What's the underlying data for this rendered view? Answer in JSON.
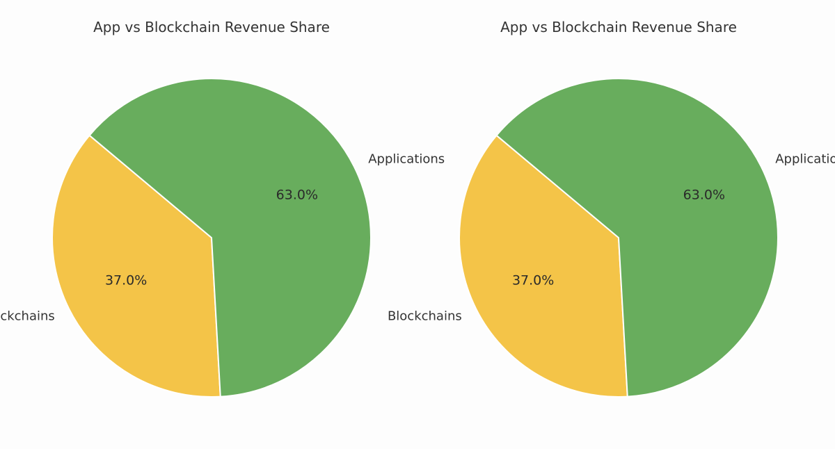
{
  "chart_data": [
    {
      "type": "pie",
      "title": "App vs Blockchain Revenue Share",
      "categories": [
        "Blockchains",
        "Applications"
      ],
      "values": [
        37.0,
        63.0
      ],
      "value_labels": [
        "37.0%",
        "63.0%"
      ],
      "colors": [
        "#F4C448",
        "#68AD5D"
      ],
      "start_angle_deg": 140,
      "direction": "counterclockwise",
      "legend": "none"
    },
    {
      "type": "pie",
      "title": "App vs Blockchain Revenue Share",
      "categories": [
        "Blockchains",
        "Applications"
      ],
      "values": [
        37.0,
        63.0
      ],
      "value_labels": [
        "37.0%",
        "63.0%"
      ],
      "colors": [
        "#F4C448",
        "#68AD5D"
      ],
      "start_angle_deg": 140,
      "direction": "counterclockwise",
      "legend": "none"
    }
  ]
}
